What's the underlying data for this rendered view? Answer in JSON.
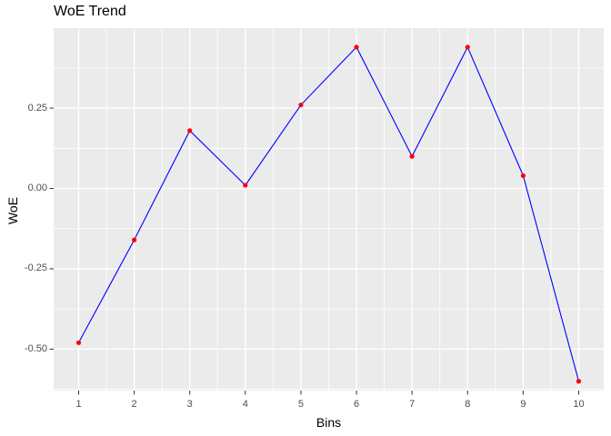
{
  "chart_data": {
    "type": "line",
    "title": "WoE Trend",
    "xlabel": "Bins",
    "ylabel": "WoE",
    "x": [
      1,
      2,
      3,
      4,
      5,
      6,
      7,
      8,
      9,
      10
    ],
    "y": [
      -0.48,
      -0.16,
      0.18,
      0.01,
      0.26,
      0.44,
      0.1,
      0.44,
      0.04,
      -0.6
    ],
    "x_tick_labels": [
      "1",
      "2",
      "3",
      "4",
      "5",
      "6",
      "7",
      "8",
      "9",
      "10"
    ],
    "x_tick_values": [
      1,
      2,
      3,
      4,
      5,
      6,
      7,
      8,
      9,
      10
    ],
    "x_minor_tick_values": [
      1.5,
      2.5,
      3.5,
      4.5,
      5.5,
      6.5,
      7.5,
      8.5,
      9.5
    ],
    "y_tick_labels": [
      "0.25",
      "0.00",
      "-0.25",
      "-0.50"
    ],
    "y_tick_values": [
      0.25,
      0.0,
      -0.25,
      -0.5
    ],
    "y_minor_tick_values": [
      0.375,
      0.125,
      -0.125,
      -0.375,
      -0.625
    ],
    "xlim": [
      0.55,
      10.45
    ],
    "ylim": [
      -0.629,
      0.499
    ],
    "grid": true,
    "legend": false,
    "colors": {
      "line": "#0000FF",
      "point": "#FF0000",
      "panel_background": "#EBEBEB",
      "grid_major": "#FFFFFF",
      "grid_minor": "#FFFFFF",
      "tick_mark": "#333333",
      "tick_label": "#4D4D4D",
      "title_text": "#000000"
    }
  }
}
